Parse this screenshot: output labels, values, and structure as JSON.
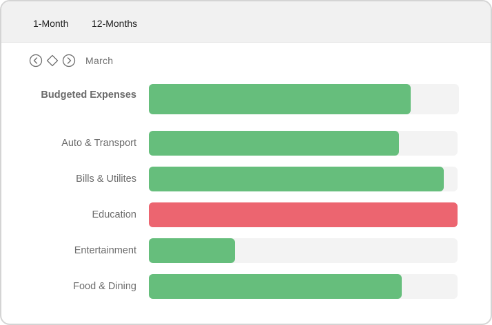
{
  "period_tabs": [
    {
      "label": "1-Month",
      "selected": true
    },
    {
      "label": "12-Months",
      "selected": false
    }
  ],
  "navigation": {
    "current_period": "March",
    "icons": [
      "chevron-left-circle-icon",
      "diamond-icon",
      "chevron-right-circle-icon"
    ]
  },
  "colors": {
    "under_budget": "#66be7c",
    "over_budget": "#ec6570",
    "track": "#f3f3f3"
  },
  "summary": {
    "label": "Budgeted Expenses",
    "fraction": 0.845,
    "status": "under_budget"
  },
  "categories": [
    {
      "label": "Auto & Transport",
      "fraction": 0.81,
      "status": "under_budget"
    },
    {
      "label": "Bills & Utilites",
      "fraction": 0.955,
      "status": "under_budget"
    },
    {
      "label": "Education",
      "fraction": 1.0,
      "status": "over_budget"
    },
    {
      "label": "Entertainment",
      "fraction": 0.28,
      "status": "under_budget"
    },
    {
      "label": "Food & Dining",
      "fraction": 0.82,
      "status": "under_budget"
    }
  ]
}
